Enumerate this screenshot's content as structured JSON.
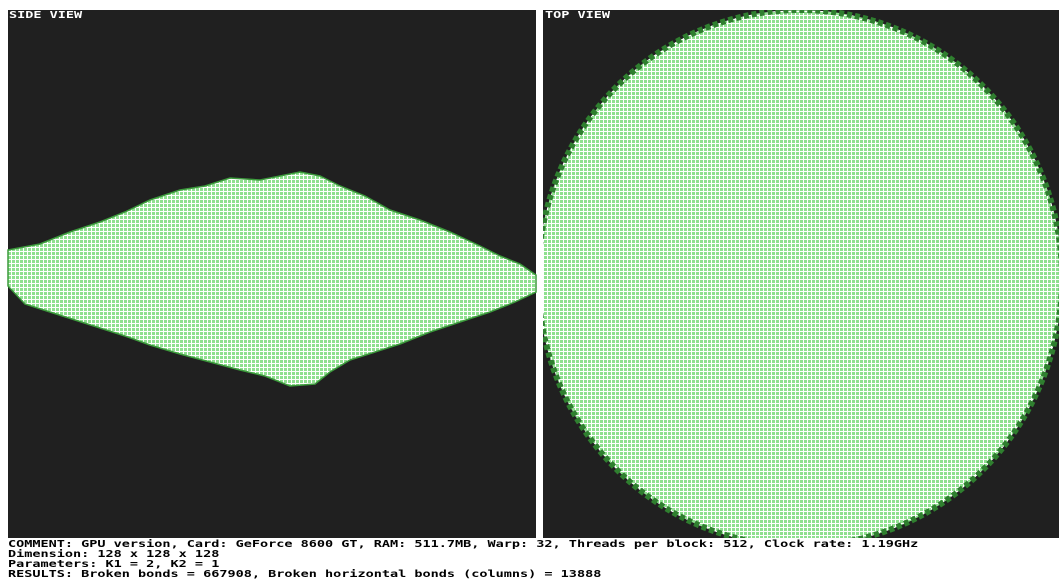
{
  "panels": {
    "side": {
      "label": "SIDE VIEW"
    },
    "top": {
      "label": "TOP VIEW"
    }
  },
  "info": {
    "lines": [
      "COMMENT: GPU version, Card: GeForce 8600 GT, RAM: 511.7MB, Warp: 32, Threads per block: 512, Clock rate: 1.19GHz",
      "Dimension: 128 x 128 x 128",
      "Parameters: K1 = 2, K2 = 1",
      "RESULTS: Broken bonds = 667908, Broken horizontal bonds (columns) = 13888"
    ]
  }
}
